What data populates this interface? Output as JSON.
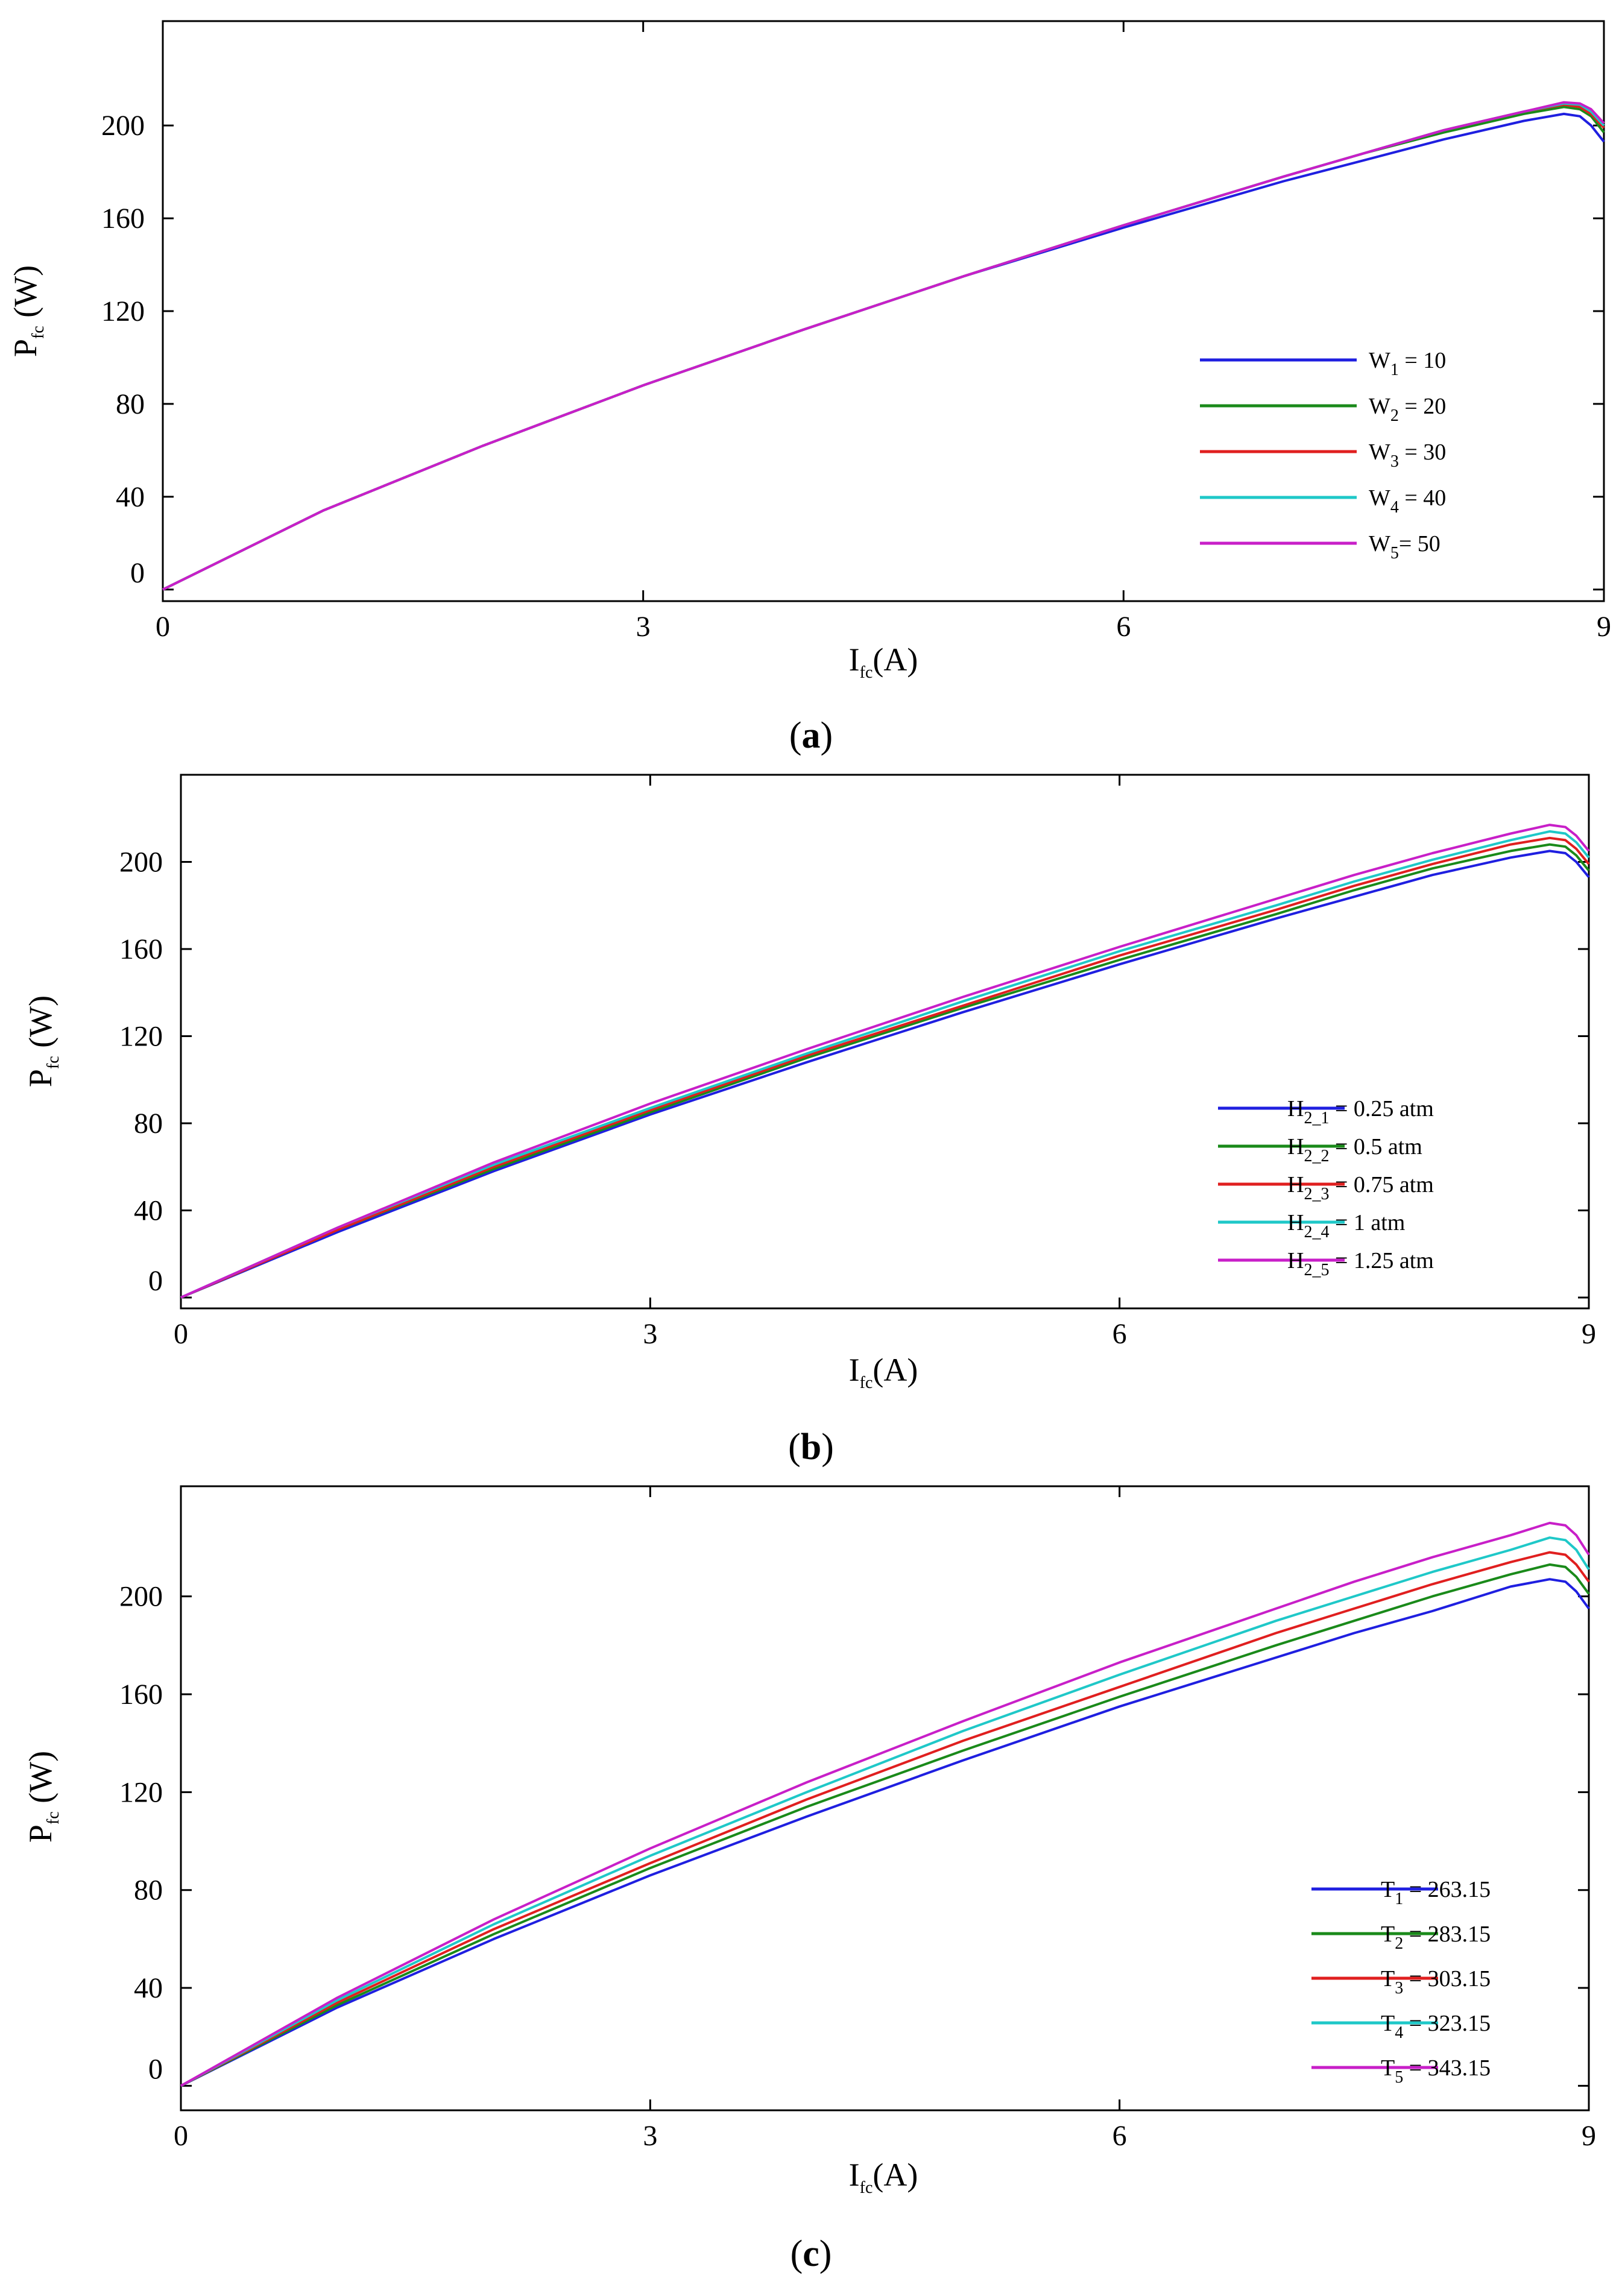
{
  "chart_data": [
    {
      "type": "line",
      "panel_label": "a",
      "xlabel": {
        "main": "I",
        "sub": "fc",
        "rest": "(A)"
      },
      "ylabel": {
        "main": "P",
        "sub": "fc",
        "rest": " (W)"
      },
      "xlim": [
        0,
        9
      ],
      "ylim": [
        -5,
        245
      ],
      "xticks": [
        0,
        3,
        6,
        9
      ],
      "yticks": [
        0,
        40,
        80,
        120,
        160,
        200
      ],
      "legend_position": "center-right",
      "series": [
        {
          "name": "W1 = 10",
          "label_main": "W",
          "label_sub": "1",
          "label_rest": " = 10",
          "color": "#1f1fe0",
          "x": [
            0,
            1,
            2,
            3,
            4,
            5,
            6,
            7,
            7.5,
            8,
            8.5,
            8.75,
            8.85,
            8.92,
            9.0
          ],
          "y": [
            0,
            34,
            62,
            88,
            112,
            135,
            156,
            176,
            185,
            194,
            202,
            205,
            204,
            200,
            193
          ]
        },
        {
          "name": "W2 = 20",
          "label_main": "W",
          "label_sub": "2",
          "label_rest": " = 20",
          "color": "#1a8a1a",
          "x": [
            0,
            1,
            2,
            3,
            4,
            5,
            6,
            7,
            7.5,
            8,
            8.5,
            8.75,
            8.85,
            8.92,
            9.0
          ],
          "y": [
            0,
            34,
            62,
            88,
            112,
            135,
            157,
            178,
            188,
            197,
            205,
            208,
            207,
            204,
            197
          ]
        },
        {
          "name": "W3 = 30",
          "label_main": "W",
          "label_sub": "3",
          "label_rest": " = 30",
          "color": "#e01f1f",
          "x": [
            0,
            1,
            2,
            3,
            4,
            5,
            6,
            7,
            7.5,
            8,
            8.5,
            8.75,
            8.85,
            8.92,
            9.0
          ],
          "y": [
            0,
            34,
            62,
            88,
            112,
            135,
            157,
            178,
            188,
            198,
            206,
            209,
            208,
            205,
            199
          ]
        },
        {
          "name": "W4 = 40",
          "label_main": "W",
          "label_sub": "4",
          "label_rest": " = 40",
          "color": "#1fc8c8",
          "x": [
            0,
            1,
            2,
            3,
            4,
            5,
            6,
            7,
            7.5,
            8,
            8.5,
            8.75,
            8.85,
            8.92,
            9.0
          ],
          "y": [
            0,
            34,
            62,
            88,
            112,
            135,
            157,
            178,
            188,
            198,
            206,
            209.5,
            209,
            206,
            200
          ]
        },
        {
          "name": "W5 = 50",
          "label_main": "W",
          "label_sub": "5",
          "label_rest": "= 50",
          "color": "#c81fc8",
          "x": [
            0,
            1,
            2,
            3,
            4,
            5,
            6,
            7,
            7.5,
            8,
            8.5,
            8.75,
            8.85,
            8.92,
            9.0
          ],
          "y": [
            0,
            34,
            62,
            88,
            112,
            135,
            157,
            178,
            188,
            198,
            206,
            210,
            209.5,
            207,
            201
          ]
        }
      ]
    },
    {
      "type": "line",
      "panel_label": "b",
      "xlabel": {
        "main": "I",
        "sub": "fc",
        "rest": "(A)"
      },
      "ylabel": {
        "main": "P",
        "sub": "fc",
        "rest": " (W)"
      },
      "xlim": [
        0,
        9
      ],
      "ylim": [
        -5,
        240
      ],
      "xticks": [
        0,
        3,
        6,
        9
      ],
      "yticks": [
        0,
        40,
        80,
        120,
        160,
        200
      ],
      "legend_position": "center-right",
      "series": [
        {
          "name": "H2_1 = 0.25 atm",
          "label_main": "H",
          "label_sub": "2_1",
          "label_rest": " = 0.25 atm",
          "color": "#1f1fe0",
          "x": [
            0,
            1,
            2,
            3,
            4,
            5,
            6,
            7,
            7.5,
            8,
            8.5,
            8.75,
            8.85,
            8.92,
            9.0
          ],
          "y": [
            0,
            30,
            58,
            84,
            108,
            131,
            153,
            174,
            184,
            194,
            202,
            205,
            204,
            200,
            193
          ]
        },
        {
          "name": "H2_2 = 0.5 atm",
          "label_main": "H",
          "label_sub": "2_2",
          "label_rest": " = 0.5 atm",
          "color": "#1a8a1a",
          "x": [
            0,
            1,
            2,
            3,
            4,
            5,
            6,
            7,
            7.5,
            8,
            8.5,
            8.75,
            8.85,
            8.92,
            9.0
          ],
          "y": [
            0,
            31,
            59,
            85,
            110,
            133,
            155,
            176,
            187,
            197,
            205,
            208,
            207,
            203,
            196
          ]
        },
        {
          "name": "H2_3 = 0.75 atm",
          "label_main": "H",
          "label_sub": "2_3",
          "label_rest": " = 0.75 atm",
          "color": "#e01f1f",
          "x": [
            0,
            1,
            2,
            3,
            4,
            5,
            6,
            7,
            7.5,
            8,
            8.5,
            8.75,
            8.85,
            8.92,
            9.0
          ],
          "y": [
            0,
            31,
            60,
            86,
            111,
            134,
            157,
            178,
            189,
            199,
            208,
            211,
            210,
            206,
            199
          ]
        },
        {
          "name": "H2_4 = 1 atm",
          "label_main": "H",
          "label_sub": "2_4",
          "label_rest": " = 1 atm",
          "color": "#1fc8c8",
          "x": [
            0,
            1,
            2,
            3,
            4,
            5,
            6,
            7,
            7.5,
            8,
            8.5,
            8.75,
            8.85,
            8.92,
            9.0
          ],
          "y": [
            0,
            32,
            61,
            87,
            112,
            136,
            159,
            180,
            191,
            201,
            210,
            214,
            213,
            209,
            202
          ]
        },
        {
          "name": "H2_5 = 1.25 atm",
          "label_main": "H",
          "label_sub": "2_5",
          "label_rest": " = 1.25 atm",
          "color": "#c81fc8",
          "x": [
            0,
            1,
            2,
            3,
            4,
            5,
            6,
            7,
            7.5,
            8,
            8.5,
            8.75,
            8.85,
            8.92,
            9.0
          ],
          "y": [
            0,
            32,
            62,
            89,
            114,
            138,
            161,
            183,
            194,
            204,
            213,
            217,
            216,
            212,
            205
          ]
        }
      ]
    },
    {
      "type": "line",
      "panel_label": "c",
      "xlabel": {
        "main": "I",
        "sub": "fc",
        "rest": "(A)"
      },
      "ylabel": {
        "main": "P",
        "sub": "fc",
        "rest": " (W)"
      },
      "xlim": [
        0,
        9
      ],
      "ylim": [
        -10,
        245
      ],
      "xticks": [
        0,
        3,
        6,
        9
      ],
      "yticks": [
        0,
        40,
        80,
        120,
        160,
        200
      ],
      "legend_position": "center-right",
      "series": [
        {
          "name": "T1 = 263.15",
          "label_main": "T",
          "label_sub": "1",
          "label_rest": " = 263.15",
          "color": "#1f1fe0",
          "x": [
            0,
            1,
            2,
            3,
            4,
            5,
            6,
            7,
            7.5,
            8,
            8.5,
            8.75,
            8.85,
            8.92,
            9.0
          ],
          "y": [
            0,
            32,
            60,
            86,
            110,
            133,
            155,
            175,
            185,
            194,
            204,
            207,
            206,
            202,
            195
          ]
        },
        {
          "name": "T2 = 283.15",
          "label_main": "T",
          "label_sub": "2",
          "label_rest": " = 283.15",
          "color": "#1a8a1a",
          "x": [
            0,
            1,
            2,
            3,
            4,
            5,
            6,
            7,
            7.5,
            8,
            8.5,
            8.75,
            8.85,
            8.92,
            9.0
          ],
          "y": [
            0,
            33,
            62,
            89,
            114,
            137,
            159,
            180,
            190,
            200,
            209,
            213,
            212,
            208,
            201
          ]
        },
        {
          "name": "T3 = 303.15",
          "label_main": "T",
          "label_sub": "3",
          "label_rest": " = 303.15",
          "color": "#e01f1f",
          "x": [
            0,
            1,
            2,
            3,
            4,
            5,
            6,
            7,
            7.5,
            8,
            8.5,
            8.75,
            8.85,
            8.92,
            9.0
          ],
          "y": [
            0,
            34,
            64,
            91,
            117,
            141,
            163,
            185,
            195,
            205,
            214,
            218,
            217,
            213,
            206
          ]
        },
        {
          "name": "T4 = 323.15",
          "label_main": "T",
          "label_sub": "4",
          "label_rest": " = 323.15",
          "color": "#1fc8c8",
          "x": [
            0,
            1,
            2,
            3,
            4,
            5,
            6,
            7,
            7.5,
            8,
            8.5,
            8.75,
            8.85,
            8.92,
            9.0
          ],
          "y": [
            0,
            35,
            66,
            94,
            120,
            145,
            168,
            190,
            200,
            210,
            219,
            224,
            223,
            219,
            211
          ]
        },
        {
          "name": "T5 = 343.15",
          "label_main": "T",
          "label_sub": "5",
          "label_rest": " = 343.15",
          "color": "#c81fc8",
          "x": [
            0,
            1,
            2,
            3,
            4,
            5,
            6,
            7,
            7.5,
            8,
            8.5,
            8.75,
            8.85,
            8.92,
            9.0
          ],
          "y": [
            0,
            36,
            68,
            97,
            124,
            149,
            173,
            195,
            206,
            216,
            225,
            230,
            229,
            225,
            217
          ]
        }
      ]
    }
  ]
}
